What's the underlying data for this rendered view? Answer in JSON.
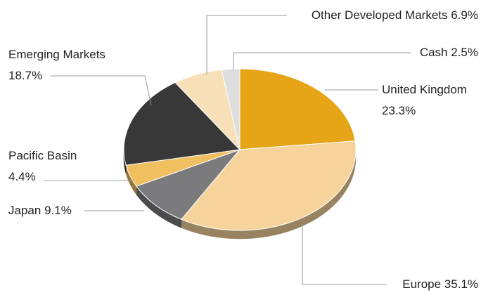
{
  "chart_data": {
    "type": "pie",
    "categories": [
      "United Kingdom",
      "Europe",
      "Japan",
      "Pacific Basin",
      "Emerging Markets",
      "Other Developed Markets",
      "Cash"
    ],
    "values": [
      23.3,
      35.1,
      9.1,
      4.4,
      18.7,
      6.9,
      2.5
    ],
    "value_labels": [
      "23.3%",
      "35.1%",
      "9.1%",
      "4.4%",
      "18.7%",
      "6.9%",
      "2.5%"
    ],
    "colors": [
      "#e5a516",
      "#f5d39b",
      "#7b7b7d",
      "#f0c060",
      "#383838",
      "#f7dfb8",
      "#dedede"
    ]
  }
}
